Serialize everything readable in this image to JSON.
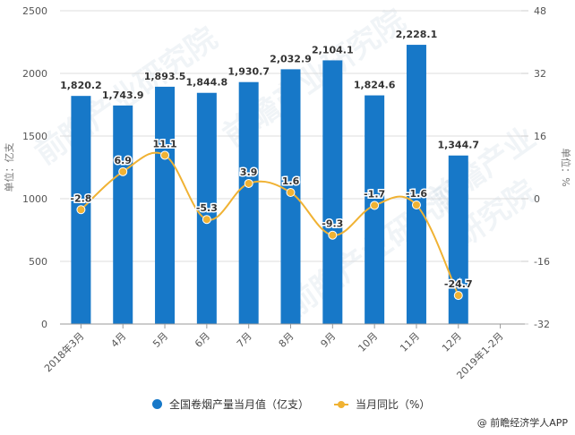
{
  "chart_data": {
    "type": "bar",
    "title": "",
    "categories": [
      "2018年3月",
      "4月",
      "5月",
      "6月",
      "7月",
      "8月",
      "9月",
      "10月",
      "11月",
      "12月",
      "2019年1-2月"
    ],
    "series": [
      {
        "name": "全国卷烟产量当月值（亿支）",
        "type": "bar",
        "axis": "left",
        "color": "#1778c8",
        "values": [
          1820.2,
          1743.9,
          1893.5,
          1844.8,
          1930.7,
          2032.9,
          2104.1,
          1824.6,
          2228.1,
          1344.7,
          null
        ],
        "labels": [
          "1,820.2",
          "1,743.9",
          "1,893.5",
          "1,844.8",
          "1,930.7",
          "2,032.9",
          "2,104.1",
          "1,824.6",
          "2,228.1",
          "1,344.7",
          ""
        ]
      },
      {
        "name": "当月同比（%）",
        "type": "line",
        "axis": "right",
        "color": "#f0b233",
        "values": [
          -2.8,
          6.9,
          11.1,
          -5.3,
          3.9,
          1.6,
          -9.3,
          -1.7,
          -1.6,
          -24.7,
          null
        ],
        "labels": [
          "-2.8",
          "6.9",
          "11.1",
          "-5.3",
          "3.9",
          "1.6",
          "-9.3",
          "-1.7",
          "-1.6",
          "-24.7",
          ""
        ]
      }
    ],
    "y_left": {
      "label": "单位：亿支",
      "ylim": [
        0,
        2500
      ],
      "ticks": [
        0,
        500,
        1000,
        1500,
        2000,
        2500
      ]
    },
    "y_right": {
      "label": "单位：%",
      "ylim": [
        -32,
        48
      ],
      "ticks": [
        -32,
        -16,
        0,
        16,
        32,
        48
      ]
    },
    "xlabel": "",
    "grid": true,
    "legend_position": "bottom"
  },
  "legend": {
    "bar_label": "全国卷烟产量当月值（亿支）",
    "line_label": "当月同比（%）"
  },
  "source": "@ 前瞻经济学人APP",
  "watermark": "前瞻产业研究院"
}
